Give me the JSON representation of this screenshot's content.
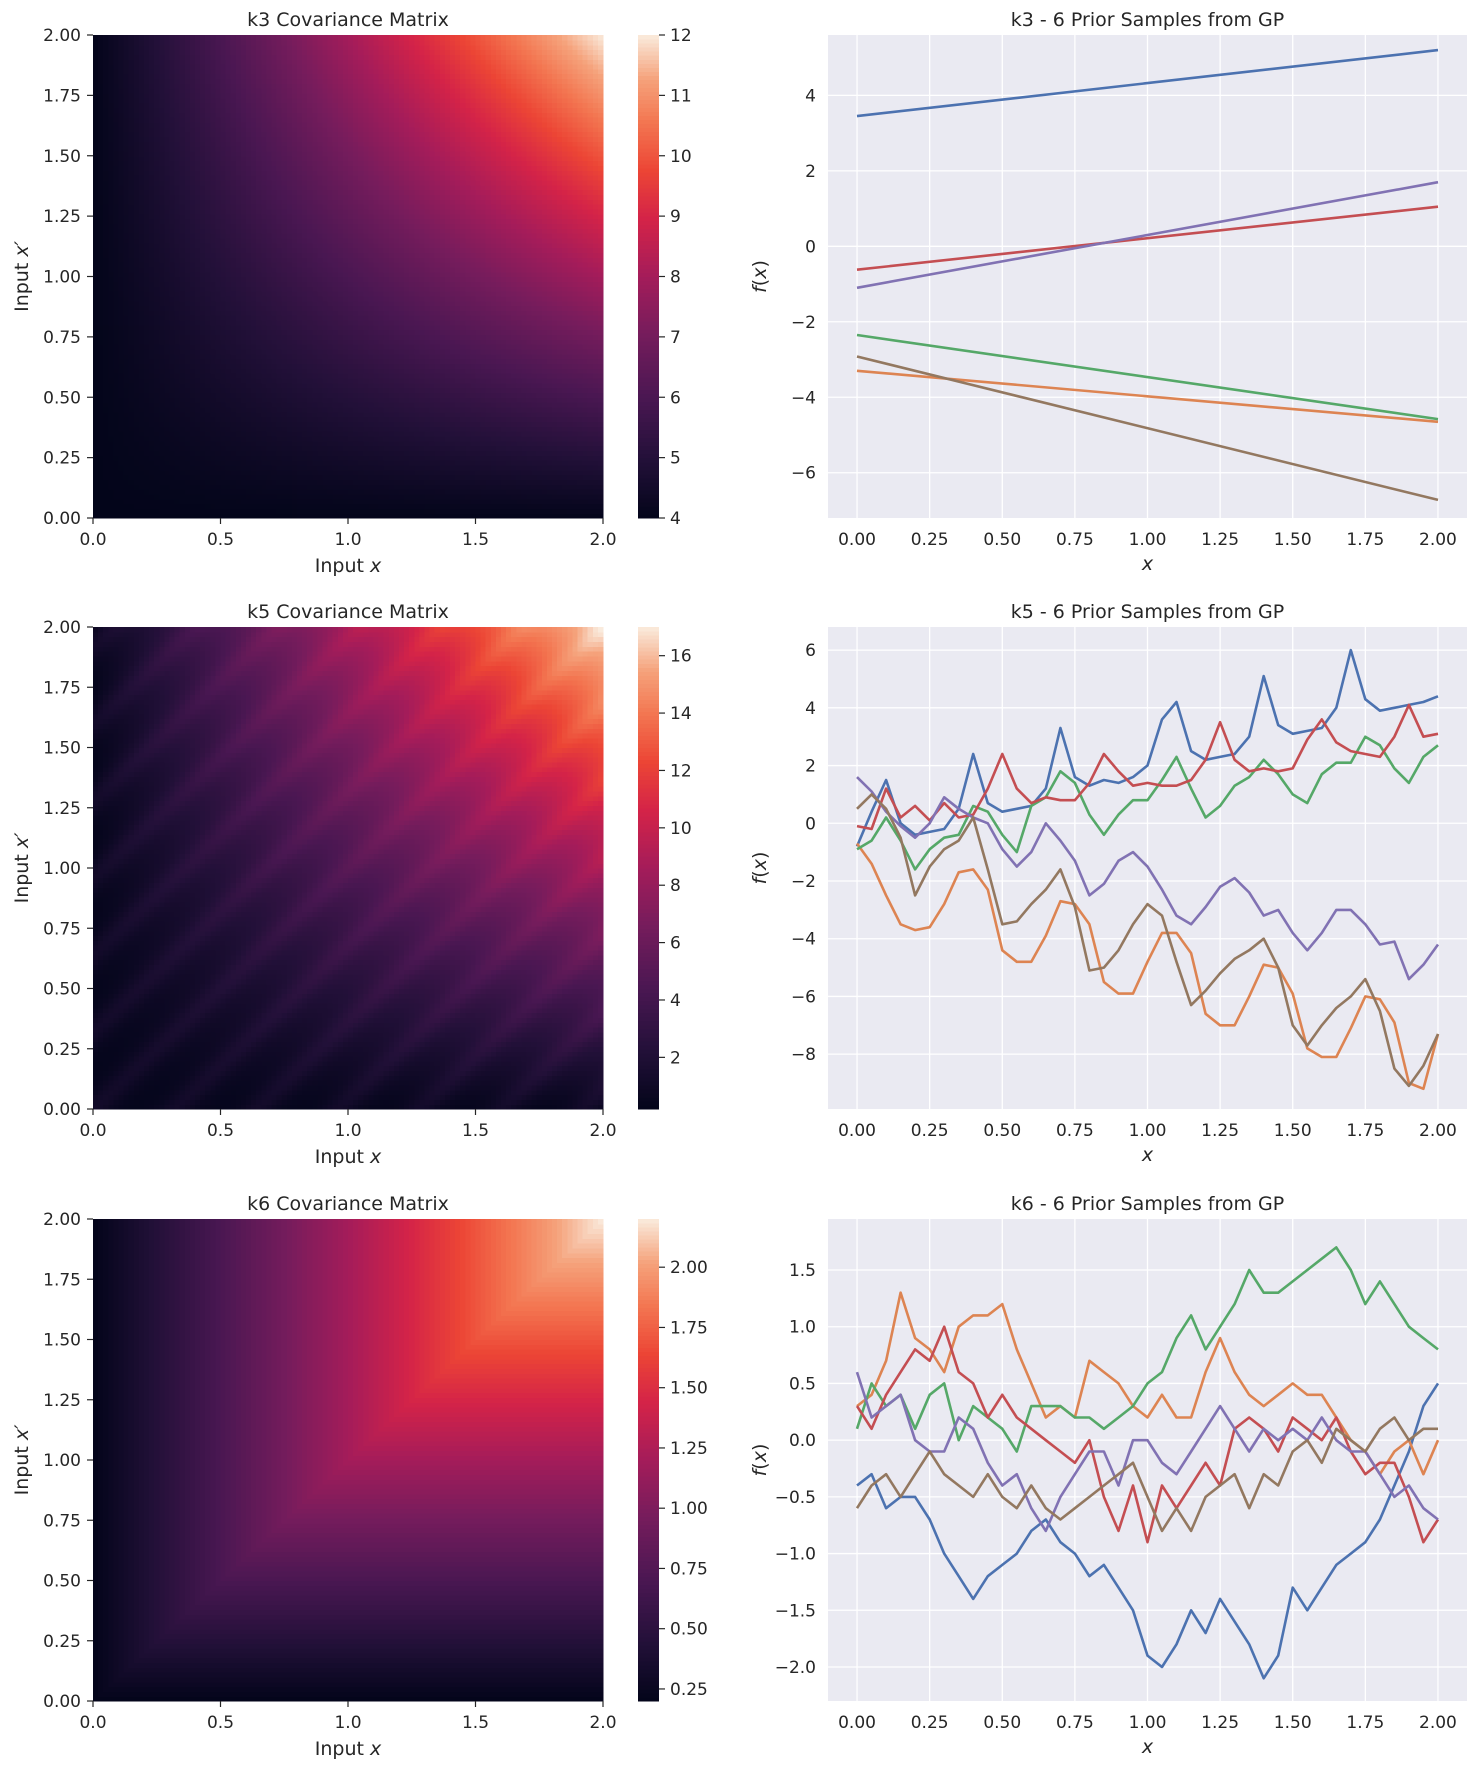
{
  "figure": {
    "colors": {
      "series": [
        "#4c72b0",
        "#dd8452",
        "#55a868",
        "#c44e52",
        "#8172b3",
        "#937860"
      ],
      "axes_bg": "#eaeaf2",
      "grid": "#ffffff",
      "colormap": "rocket"
    }
  },
  "chart_data": [
    {
      "type": "heatmap",
      "id": "k3-cov",
      "title": "k3 Covariance Matrix",
      "xlabel": "Input x",
      "ylabel": "Input x′",
      "xlim": [
        0,
        2
      ],
      "ylim": [
        0,
        2
      ],
      "xticks": [
        "0.0",
        "0.5",
        "1.0",
        "1.5",
        "2.0"
      ],
      "yticks": [
        "0.00",
        "0.25",
        "0.50",
        "0.75",
        "1.00",
        "1.25",
        "1.50",
        "1.75",
        "2.00"
      ],
      "colorbar": {
        "min": 4,
        "max": 12,
        "ticks": [
          "4",
          "5",
          "6",
          "7",
          "8",
          "9",
          "10",
          "11",
          "12"
        ]
      },
      "pattern": "4 + 2*x*x′",
      "sample_values": {
        "x": [
          0,
          0.5,
          1.0,
          1.5,
          2.0
        ],
        "diag": [
          4.0,
          4.5,
          6.0,
          8.5,
          12.0
        ]
      }
    },
    {
      "type": "line",
      "id": "k3-samples",
      "title": "k3 - 6 Prior Samples from GP",
      "xlabel": "x",
      "ylabel": "f(x)",
      "xlim": [
        0,
        2
      ],
      "ylim": [
        -7.2,
        5.6
      ],
      "xticks": [
        "0.00",
        "0.25",
        "0.50",
        "0.75",
        "1.00",
        "1.25",
        "1.50",
        "1.75",
        "2.00"
      ],
      "yticks": [
        "−6",
        "−4",
        "−2",
        "0",
        "2",
        "4"
      ],
      "x": [
        0,
        2
      ],
      "series": [
        {
          "values": [
            3.45,
            5.2
          ]
        },
        {
          "values": [
            -3.3,
            -4.65
          ]
        },
        {
          "values": [
            -2.35,
            -4.58
          ]
        },
        {
          "values": [
            -0.62,
            1.05
          ]
        },
        {
          "values": [
            -1.1,
            1.7
          ]
        },
        {
          "values": [
            -2.92,
            -6.72
          ]
        }
      ]
    },
    {
      "type": "heatmap",
      "id": "k5-cov",
      "title": "k5 Covariance Matrix",
      "xlabel": "Input x",
      "ylabel": "Input x′",
      "xlim": [
        0,
        2
      ],
      "ylim": [
        0,
        2
      ],
      "xticks": [
        "0.0",
        "0.5",
        "1.0",
        "1.5",
        "2.0"
      ],
      "yticks": [
        "0.00",
        "0.25",
        "0.50",
        "0.75",
        "1.00",
        "1.25",
        "1.50",
        "1.75",
        "2.00"
      ],
      "colorbar": {
        "min": 0.2,
        "max": 17,
        "ticks": [
          "2",
          "4",
          "6",
          "8",
          "10",
          "12",
          "14",
          "16"
        ]
      },
      "pattern": "4*x*x′ + periodic stripes (period ≈ 0.32)",
      "sample_values": {
        "x": [
          0,
          0.5,
          1.0,
          1.5,
          2.0
        ],
        "diag": [
          1.0,
          2.0,
          5.0,
          10.0,
          17.0
        ]
      }
    },
    {
      "type": "line",
      "id": "k5-samples",
      "title": "k5 - 6 Prior Samples from GP",
      "xlabel": "x",
      "ylabel": "f(x)",
      "xlim": [
        0,
        2
      ],
      "ylim": [
        -9.9,
        6.8
      ],
      "xticks": [
        "0.00",
        "0.25",
        "0.50",
        "0.75",
        "1.00",
        "1.25",
        "1.50",
        "1.75",
        "2.00"
      ],
      "yticks": [
        "−8",
        "−6",
        "−4",
        "−2",
        "0",
        "2",
        "4",
        "6"
      ],
      "x": [
        0,
        0.05,
        0.1,
        0.15,
        0.2,
        0.25,
        0.3,
        0.35,
        0.4,
        0.45,
        0.5,
        0.55,
        0.6,
        0.65,
        0.7,
        0.75,
        0.8,
        0.85,
        0.9,
        0.95,
        1.0,
        1.05,
        1.1,
        1.15,
        1.2,
        1.25,
        1.3,
        1.35,
        1.4,
        1.45,
        1.5,
        1.55,
        1.6,
        1.65,
        1.7,
        1.75,
        1.8,
        1.85,
        1.9,
        1.95,
        2.0
      ],
      "series": [
        {
          "values": [
            -0.8,
            0.4,
            1.5,
            0.0,
            -0.4,
            -0.3,
            -0.2,
            0.5,
            2.4,
            0.7,
            0.4,
            0.5,
            0.6,
            1.2,
            3.3,
            1.6,
            1.3,
            1.5,
            1.4,
            1.6,
            2.0,
            3.6,
            4.2,
            2.5,
            2.2,
            2.3,
            2.4,
            3.0,
            5.1,
            3.4,
            3.1,
            3.2,
            3.3,
            4.0,
            6.0,
            4.3,
            3.9,
            4.0,
            4.1,
            4.2,
            4.4
          ]
        },
        {
          "values": [
            -0.7,
            -1.4,
            -2.5,
            -3.5,
            -3.7,
            -3.6,
            -2.8,
            -1.7,
            -1.6,
            -2.3,
            -4.4,
            -4.8,
            -4.8,
            -3.9,
            -2.7,
            -2.8,
            -3.5,
            -5.5,
            -5.9,
            -5.9,
            -4.8,
            -3.8,
            -3.8,
            -4.5,
            -6.6,
            -7.0,
            -7.0,
            -6.0,
            -4.9,
            -5.0,
            -5.9,
            -7.8,
            -8.1,
            -8.1,
            -7.1,
            -6.0,
            -6.1,
            -6.9,
            -9.0,
            -9.2,
            -7.3
          ]
        },
        {
          "values": [
            -0.9,
            -0.6,
            0.2,
            -0.6,
            -1.6,
            -0.9,
            -0.5,
            -0.4,
            0.6,
            0.4,
            -0.4,
            -1.0,
            0.6,
            0.9,
            1.8,
            1.4,
            0.3,
            -0.4,
            0.3,
            0.8,
            0.8,
            1.5,
            2.3,
            1.2,
            0.2,
            0.6,
            1.3,
            1.6,
            2.2,
            1.7,
            1.0,
            0.7,
            1.7,
            2.1,
            2.1,
            3.0,
            2.7,
            1.9,
            1.4,
            2.3,
            2.7
          ]
        },
        {
          "values": [
            -0.1,
            -0.2,
            1.2,
            0.2,
            0.6,
            0.1,
            0.7,
            0.2,
            0.3,
            1.2,
            2.4,
            1.2,
            0.7,
            0.9,
            0.8,
            0.8,
            1.4,
            2.4,
            1.8,
            1.3,
            1.4,
            1.3,
            1.3,
            1.5,
            2.2,
            3.5,
            2.2,
            1.8,
            1.9,
            1.8,
            1.9,
            2.9,
            3.6,
            2.8,
            2.5,
            2.4,
            2.3,
            3.0,
            4.1,
            3.0,
            3.1
          ]
        },
        {
          "values": [
            1.6,
            1.1,
            0.4,
            -0.1,
            -0.5,
            0.0,
            0.9,
            0.5,
            0.2,
            0.0,
            -0.9,
            -1.5,
            -1.0,
            0.0,
            -0.6,
            -1.3,
            -2.5,
            -2.1,
            -1.3,
            -1.0,
            -1.5,
            -2.3,
            -3.2,
            -3.5,
            -2.9,
            -2.2,
            -1.9,
            -2.4,
            -3.2,
            -3.0,
            -3.8,
            -4.4,
            -3.8,
            -3.0,
            -3.0,
            -3.5,
            -4.2,
            -4.1,
            -5.4,
            -4.9,
            -4.2
          ]
        },
        {
          "values": [
            0.5,
            1.0,
            0.5,
            -0.5,
            -2.5,
            -1.5,
            -0.9,
            -0.6,
            0.2,
            -1.6,
            -3.5,
            -3.4,
            -2.8,
            -2.3,
            -1.6,
            -2.9,
            -5.1,
            -5.0,
            -4.4,
            -3.5,
            -2.8,
            -3.2,
            -4.8,
            -6.3,
            -5.8,
            -5.2,
            -4.7,
            -4.4,
            -4.0,
            -5.0,
            -7.0,
            -7.7,
            -7.0,
            -6.4,
            -6.0,
            -5.4,
            -6.5,
            -8.5,
            -9.1,
            -8.4,
            -7.3
          ]
        }
      ]
    },
    {
      "type": "heatmap",
      "id": "k6-cov",
      "title": "k6 Covariance Matrix",
      "xlabel": "Input x",
      "ylabel": "Input x′",
      "xlim": [
        0,
        2
      ],
      "ylim": [
        0,
        2
      ],
      "xticks": [
        "0.0",
        "0.5",
        "1.0",
        "1.5",
        "2.0"
      ],
      "yticks": [
        "0.00",
        "0.25",
        "0.50",
        "0.75",
        "1.00",
        "1.25",
        "1.50",
        "1.75",
        "2.00"
      ],
      "colorbar": {
        "min": 0.2,
        "max": 2.2,
        "ticks": [
          "0.25",
          "0.50",
          "0.75",
          "1.00",
          "1.25",
          "1.50",
          "1.75",
          "2.00"
        ]
      },
      "pattern": "0.2 + min(x, x′)",
      "sample_values": {
        "x": [
          0,
          0.5,
          1.0,
          1.5,
          2.0
        ],
        "diag": [
          0.2,
          0.7,
          1.2,
          1.7,
          2.2
        ]
      }
    },
    {
      "type": "line",
      "id": "k6-samples",
      "title": "k6 - 6 Prior Samples from GP",
      "xlabel": "x",
      "ylabel": "f(x)",
      "xlim": [
        0,
        2
      ],
      "ylim": [
        -2.3,
        1.95
      ],
      "xticks": [
        "0.00",
        "0.25",
        "0.50",
        "0.75",
        "1.00",
        "1.25",
        "1.50",
        "1.75",
        "2.00"
      ],
      "yticks": [
        "−2.0",
        "−1.5",
        "−1.0",
        "−0.5",
        "0.0",
        "0.5",
        "1.0",
        "1.5"
      ],
      "x": [
        0,
        0.05,
        0.1,
        0.15,
        0.2,
        0.25,
        0.3,
        0.35,
        0.4,
        0.45,
        0.5,
        0.55,
        0.6,
        0.65,
        0.7,
        0.75,
        0.8,
        0.85,
        0.9,
        0.95,
        1.0,
        1.05,
        1.1,
        1.15,
        1.2,
        1.25,
        1.3,
        1.35,
        1.4,
        1.45,
        1.5,
        1.55,
        1.6,
        1.65,
        1.7,
        1.75,
        1.8,
        1.85,
        1.9,
        1.95,
        2.0
      ],
      "series": [
        {
          "values": [
            -0.4,
            -0.3,
            -0.6,
            -0.5,
            -0.5,
            -0.7,
            -1.0,
            -1.2,
            -1.4,
            -1.2,
            -1.1,
            -1.0,
            -0.8,
            -0.7,
            -0.9,
            -1.0,
            -1.2,
            -1.1,
            -1.3,
            -1.5,
            -1.9,
            -2.0,
            -1.8,
            -1.5,
            -1.7,
            -1.4,
            -1.6,
            -1.8,
            -2.1,
            -1.9,
            -1.3,
            -1.5,
            -1.3,
            -1.1,
            -1.0,
            -0.9,
            -0.7,
            -0.4,
            -0.1,
            0.3,
            0.5
          ]
        },
        {
          "values": [
            0.3,
            0.4,
            0.7,
            1.3,
            0.9,
            0.8,
            0.6,
            1.0,
            1.1,
            1.1,
            1.2,
            0.8,
            0.5,
            0.2,
            0.3,
            0.2,
            0.7,
            0.6,
            0.5,
            0.3,
            0.2,
            0.4,
            0.2,
            0.2,
            0.6,
            0.9,
            0.6,
            0.4,
            0.3,
            0.4,
            0.5,
            0.4,
            0.4,
            0.2,
            0.0,
            -0.1,
            -0.3,
            -0.1,
            0.0,
            -0.3,
            0.0
          ]
        },
        {
          "values": [
            0.1,
            0.5,
            0.3,
            0.4,
            0.1,
            0.4,
            0.5,
            0.0,
            0.3,
            0.2,
            0.1,
            -0.1,
            0.3,
            0.3,
            0.3,
            0.2,
            0.2,
            0.1,
            0.2,
            0.3,
            0.5,
            0.6,
            0.9,
            1.1,
            0.8,
            1.0,
            1.2,
            1.5,
            1.3,
            1.3,
            1.4,
            1.5,
            1.6,
            1.7,
            1.5,
            1.2,
            1.4,
            1.2,
            1.0,
            0.9,
            0.8
          ]
        },
        {
          "values": [
            0.3,
            0.1,
            0.4,
            0.6,
            0.8,
            0.7,
            1.0,
            0.6,
            0.5,
            0.2,
            0.4,
            0.2,
            0.1,
            0.0,
            -0.1,
            -0.2,
            0.0,
            -0.5,
            -0.8,
            -0.4,
            -0.9,
            -0.4,
            -0.6,
            -0.4,
            -0.2,
            -0.4,
            0.1,
            0.2,
            0.1,
            -0.1,
            0.2,
            0.1,
            0.0,
            0.2,
            -0.1,
            -0.3,
            -0.2,
            -0.2,
            -0.5,
            -0.9,
            -0.7
          ]
        },
        {
          "values": [
            0.6,
            0.2,
            0.3,
            0.4,
            0.0,
            -0.1,
            -0.1,
            0.2,
            0.1,
            -0.2,
            -0.4,
            -0.3,
            -0.6,
            -0.8,
            -0.5,
            -0.3,
            -0.1,
            -0.1,
            -0.4,
            0.0,
            0.0,
            -0.2,
            -0.3,
            -0.1,
            0.1,
            0.3,
            0.1,
            -0.1,
            0.1,
            0.0,
            0.1,
            0.0,
            0.2,
            0.0,
            -0.1,
            -0.1,
            -0.3,
            -0.5,
            -0.4,
            -0.6,
            -0.7
          ]
        },
        {
          "values": [
            -0.6,
            -0.4,
            -0.3,
            -0.5,
            -0.3,
            -0.1,
            -0.3,
            -0.4,
            -0.5,
            -0.3,
            -0.5,
            -0.6,
            -0.4,
            -0.6,
            -0.7,
            -0.6,
            -0.5,
            -0.4,
            -0.3,
            -0.2,
            -0.5,
            -0.8,
            -0.6,
            -0.8,
            -0.5,
            -0.4,
            -0.3,
            -0.6,
            -0.3,
            -0.4,
            -0.1,
            0.0,
            -0.2,
            0.1,
            0.0,
            -0.1,
            0.1,
            0.2,
            0.0,
            0.1,
            0.1
          ]
        }
      ]
    }
  ]
}
